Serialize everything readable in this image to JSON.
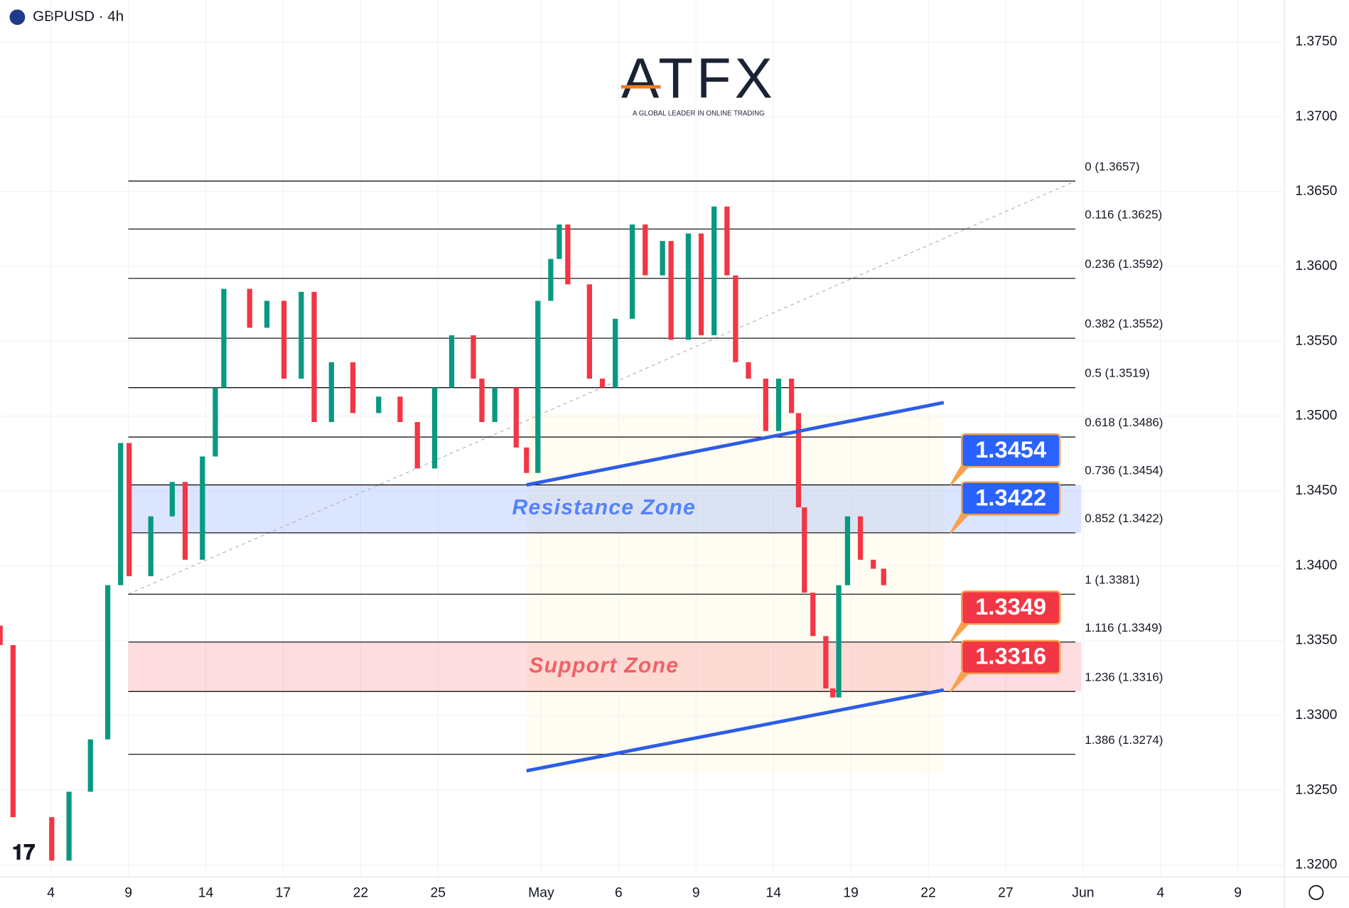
{
  "header": {
    "symbol": "GBPUSD · 4h"
  },
  "logo": {
    "brand": "ATFX",
    "tagline": "A GLOBAL LEADER IN ONLINE TRADING"
  },
  "chart_data": {
    "type": "candlestick",
    "up_color": "#089981",
    "down_color": "#f23645",
    "x": [
      -1.97,
      -1.47,
      0.03,
      0.7,
      1.53,
      2.2,
      2.7,
      3.03,
      3.87,
      4.7,
      5.2,
      5.87,
      6.37,
      6.7,
      7.7,
      8.37,
      9.03,
      9.7,
      10.2,
      10.87,
      11.7,
      12.7,
      13.53,
      14.2,
      14.87,
      15.53,
      16.37,
      16.7,
      17.2,
      18.03,
      18.43,
      18.87,
      19.37,
      19.7,
      20.03,
      20.87,
      21.37,
      21.87,
      22.53,
      23.03,
      23.7,
      24.03,
      24.7,
      25.2,
      25.7,
      26.2,
      26.53,
      27.03,
      27.7,
      28.2,
      28.7,
      28.97,
      29.2,
      29.53,
      30.03,
      30.3,
      30.53,
      30.87,
      31.37,
      31.87,
      32.27
    ],
    "open": [
      1.336,
      1.3347,
      1.3232,
      1.3203,
      1.3249,
      1.3284,
      1.3387,
      1.3482,
      1.3393,
      1.3433,
      1.3456,
      1.3404,
      1.3473,
      1.3519,
      1.3585,
      1.3559,
      1.3577,
      1.3525,
      1.3583,
      1.3496,
      1.3536,
      1.3502,
      1.3513,
      1.3496,
      1.3465,
      1.3519,
      1.3554,
      1.3525,
      1.3496,
      1.3519,
      1.3479,
      1.3462,
      1.3577,
      1.3605,
      1.3628,
      1.3588,
      1.3525,
      1.3519,
      1.3565,
      1.3628,
      1.3594,
      1.3617,
      1.3551,
      1.3622,
      1.3554,
      1.364,
      1.3594,
      1.3536,
      1.3525,
      1.349,
      1.3525,
      1.3502,
      1.3439,
      1.3382,
      1.3353,
      1.3318,
      1.3312,
      1.3387,
      1.3433,
      1.3404,
      1.3398
    ],
    "close": [
      1.3347,
      1.3232,
      1.3203,
      1.3249,
      1.3284,
      1.3387,
      1.3482,
      1.3393,
      1.3433,
      1.3456,
      1.3404,
      1.3473,
      1.3519,
      1.3585,
      1.3559,
      1.3577,
      1.3525,
      1.3583,
      1.3496,
      1.3536,
      1.3502,
      1.3513,
      1.3496,
      1.3465,
      1.3519,
      1.3554,
      1.3525,
      1.3496,
      1.3519,
      1.3479,
      1.3462,
      1.3577,
      1.3605,
      1.3628,
      1.3588,
      1.3525,
      1.3519,
      1.3565,
      1.3628,
      1.3594,
      1.3617,
      1.3551,
      1.3622,
      1.3554,
      1.364,
      1.3594,
      1.3536,
      1.3525,
      1.349,
      1.3525,
      1.3502,
      1.3439,
      1.3382,
      1.3353,
      1.3318,
      1.3312,
      1.3387,
      1.3433,
      1.3404,
      1.3398,
      1.3387
    ],
    "xlim": [
      -1.97,
      47.8
    ],
    "xticks": [
      {
        "value": 0,
        "label": "4"
      },
      {
        "value": 3,
        "label": "9"
      },
      {
        "value": 6,
        "label": "14"
      },
      {
        "value": 9,
        "label": "17"
      },
      {
        "value": 12,
        "label": "22"
      },
      {
        "value": 15,
        "label": "25"
      },
      {
        "value": 19,
        "label": "May"
      },
      {
        "value": 22,
        "label": "6"
      },
      {
        "value": 25,
        "label": "9"
      },
      {
        "value": 28,
        "label": "14"
      },
      {
        "value": 31,
        "label": "19"
      },
      {
        "value": 34,
        "label": "22"
      },
      {
        "value": 37,
        "label": "27"
      },
      {
        "value": 40,
        "label": "Jun"
      },
      {
        "value": 43,
        "label": "4"
      },
      {
        "value": 46,
        "label": "9"
      }
    ],
    "ylim": [
      1.3192,
      1.3778
    ],
    "yticks": [
      {
        "value": 1.32,
        "label": "1.3200"
      },
      {
        "value": 1.325,
        "label": "1.3250"
      },
      {
        "value": 1.33,
        "label": "1.3300"
      },
      {
        "value": 1.335,
        "label": "1.3350"
      },
      {
        "value": 1.34,
        "label": "1.3400"
      },
      {
        "value": 1.345,
        "label": "1.3450"
      },
      {
        "value": 1.35,
        "label": "1.3500"
      },
      {
        "value": 1.355,
        "label": "1.3550"
      },
      {
        "value": 1.36,
        "label": "1.3600"
      },
      {
        "value": 1.365,
        "label": "1.3650"
      },
      {
        "value": 1.37,
        "label": "1.3700"
      },
      {
        "value": 1.375,
        "label": "1.3750"
      }
    ],
    "fib_levels": [
      {
        "value": 1.3657,
        "label": "0 (1.3657)"
      },
      {
        "value": 1.3625,
        "label": "0.116 (1.3625)"
      },
      {
        "value": 1.3592,
        "label": "0.236 (1.3592)"
      },
      {
        "value": 1.3552,
        "label": "0.382 (1.3552)"
      },
      {
        "value": 1.3519,
        "label": "0.5 (1.3519)"
      },
      {
        "value": 1.3486,
        "label": "0.618 (1.3486)"
      },
      {
        "value": 1.3454,
        "label": "0.736 (1.3454)"
      },
      {
        "value": 1.3422,
        "label": "0.852 (1.3422)"
      },
      {
        "value": 1.3381,
        "label": "1 (1.3381)"
      },
      {
        "value": 1.3349,
        "label": "1.116 (1.3349)"
      },
      {
        "value": 1.3316,
        "label": "1.236 (1.3316)"
      },
      {
        "value": 1.3274,
        "label": "1.386 (1.3274)"
      }
    ],
    "zones": [
      {
        "label": "Resistance Zone",
        "low": 1.3422,
        "high": 1.3454,
        "color": "#2962ff"
      },
      {
        "label": "Support Zone",
        "low": 1.3316,
        "high": 1.3349,
        "color": "#f23645"
      }
    ],
    "callouts": [
      1.3454,
      1.3422,
      1.3349,
      1.3316
    ],
    "callout_colors": [
      "#2962ff",
      "#2962ff",
      "#f23645",
      "#f23645"
    ],
    "trendlines": [
      {
        "x": [
          18.43,
          34.6
        ],
        "y": [
          1.3454,
          1.3509
        ]
      },
      {
        "x": [
          18.43,
          34.6
        ],
        "y": [
          1.3263,
          1.3317
        ]
      }
    ],
    "trendline_color": "#2c5de5"
  }
}
